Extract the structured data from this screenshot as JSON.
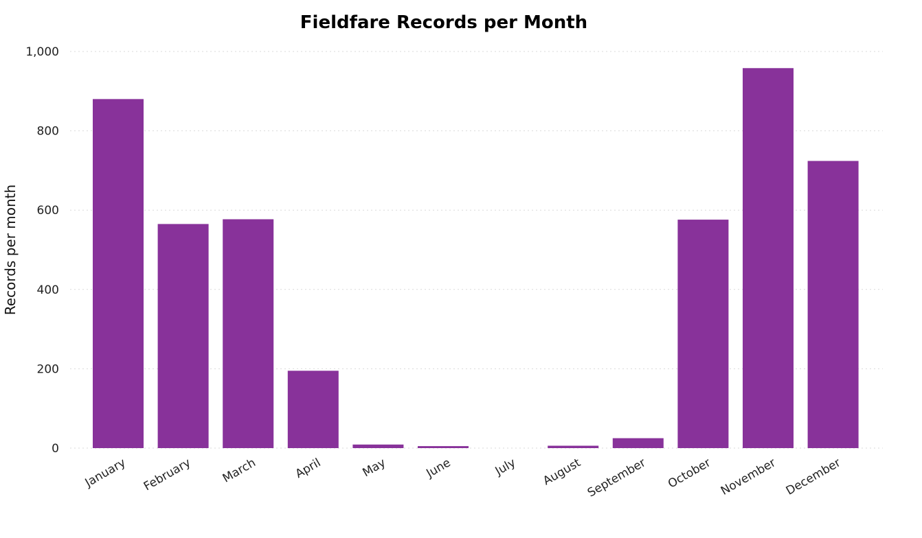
{
  "chart_data": {
    "type": "bar",
    "title": "Fieldfare Records per Month",
    "xlabel": "",
    "ylabel": "Records per month",
    "categories": [
      "January",
      "February",
      "March",
      "April",
      "May",
      "June",
      "July",
      "August",
      "September",
      "October",
      "November",
      "December"
    ],
    "values": [
      880,
      565,
      577,
      195,
      9,
      5,
      0,
      6,
      25,
      576,
      958,
      724
    ],
    "ylim": [
      0,
      1000
    ],
    "yticks": [
      0,
      200,
      400,
      600,
      800,
      1000
    ],
    "ytick_labels": [
      "0",
      "200",
      "400",
      "600",
      "800",
      "1,000"
    ],
    "grid": true,
    "legend": "none",
    "bar_color": "#88329A",
    "grid_color": "#D9D9D9"
  }
}
